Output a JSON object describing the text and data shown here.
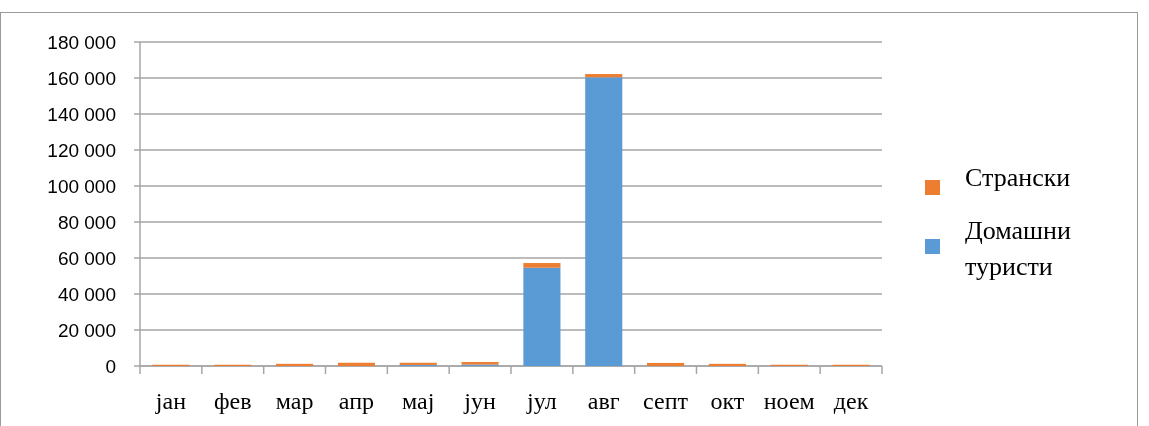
{
  "chart_data": {
    "type": "bar",
    "stacked": true,
    "categories": [
      "јан",
      "фев",
      "мар",
      "апр",
      "мај",
      "јун",
      "јул",
      "авг",
      "септ",
      "окт",
      "ноем",
      "дек"
    ],
    "series": [
      {
        "name": "Домашни туристи",
        "color": "#5b9bd5",
        "values": [
          0,
          0,
          0,
          0,
          600,
          800,
          54600,
          160400,
          0,
          0,
          0,
          0
        ]
      },
      {
        "name": "Странски",
        "color": "#ed7d31",
        "values": [
          700,
          700,
          1200,
          1800,
          1200,
          1400,
          2600,
          1800,
          1700,
          1200,
          700,
          700
        ]
      }
    ],
    "ylim": [
      0,
      180000
    ],
    "yticks": [
      {
        "value": 0,
        "label": "0"
      },
      {
        "value": 20000,
        "label": "20 000"
      },
      {
        "value": 40000,
        "label": "40 000"
      },
      {
        "value": 60000,
        "label": "60 000"
      },
      {
        "value": 80000,
        "label": "80 000"
      },
      {
        "value": 100000,
        "label": "100 000"
      },
      {
        "value": 120000,
        "label": "120 000"
      },
      {
        "value": 140000,
        "label": "140 000"
      },
      {
        "value": 160000,
        "label": "160 000"
      },
      {
        "value": 180000,
        "label": "180 000"
      }
    ],
    "grid": "y",
    "legend": "right"
  }
}
